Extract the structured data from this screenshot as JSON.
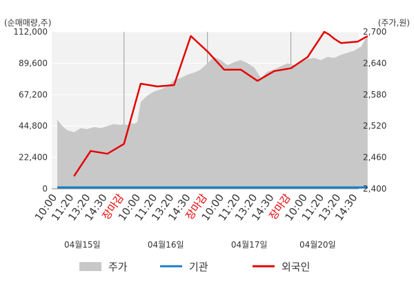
{
  "chart_data": {
    "type": "line",
    "left_axis_label": "(순매매량,주)",
    "right_axis_label": "(주가,원)",
    "left_ticks": [
      "112,000",
      "89,600",
      "67,200",
      "44,800",
      "22,400",
      "0"
    ],
    "left_range": [
      0,
      112000
    ],
    "right_ticks": [
      "2,700",
      "2,640",
      "2,580",
      "2,520",
      "2,460",
      "2,400"
    ],
    "right_range": [
      2400,
      2700
    ],
    "x_ticks": [
      {
        "label": "10:00",
        "color": "#333333"
      },
      {
        "label": "11:20",
        "color": "#333333"
      },
      {
        "label": "13:20",
        "color": "#333333"
      },
      {
        "label": "14:30",
        "color": "#333333"
      },
      {
        "label": "장마감",
        "color": "#e60000"
      },
      {
        "label": "10:00",
        "color": "#333333"
      },
      {
        "label": "11:20",
        "color": "#333333"
      },
      {
        "label": "13:20",
        "color": "#333333"
      },
      {
        "label": "14:30",
        "color": "#333333"
      },
      {
        "label": "장마감",
        "color": "#e60000"
      },
      {
        "label": "10:00",
        "color": "#333333"
      },
      {
        "label": "11:20",
        "color": "#333333"
      },
      {
        "label": "13:20",
        "color": "#333333"
      },
      {
        "label": "14:30",
        "color": "#333333"
      },
      {
        "label": "장마감",
        "color": "#e60000"
      },
      {
        "label": "10:00",
        "color": "#333333"
      },
      {
        "label": "11:20",
        "color": "#333333"
      },
      {
        "label": "13:20",
        "color": "#333333"
      },
      {
        "label": "14:30",
        "color": "#333333"
      }
    ],
    "dates": [
      "04월15일",
      "04월16일",
      "04월17일",
      "04월20일"
    ],
    "series": [
      {
        "name": "주가",
        "axis": "right",
        "color": "#c8c8c8",
        "kind": "area",
        "x": [
          0,
          0.3,
          0.6,
          1,
          1.4,
          1.8,
          2.2,
          2.6,
          3,
          3.4,
          3.8,
          4,
          4.2,
          4.4,
          4.6,
          4.8,
          5,
          5.4,
          5.8,
          6.2,
          6.6,
          7,
          7.4,
          7.8,
          8.2,
          8.6,
          9,
          9.4,
          9.8,
          10.2,
          10.6,
          11,
          11.4,
          11.8,
          12.2,
          12.6,
          13,
          13.4,
          13.8,
          14.2,
          14.6,
          15,
          15.4,
          15.8,
          16.2,
          16.6,
          17,
          17.4,
          17.8,
          18.2,
          18.6
        ],
        "values": [
          2532,
          2520,
          2512,
          2508,
          2516,
          2514,
          2518,
          2516,
          2520,
          2524,
          2522,
          2524,
          2522,
          2526,
          2524,
          2528,
          2566,
          2578,
          2586,
          2590,
          2596,
          2608,
          2612,
          2618,
          2622,
          2628,
          2640,
          2652,
          2646,
          2636,
          2642,
          2646,
          2640,
          2632,
          2612,
          2624,
          2628,
          2634,
          2640,
          2636,
          2642,
          2648,
          2650,
          2646,
          2652,
          2650,
          2656,
          2660,
          2664,
          2672,
          2694
        ]
      },
      {
        "name": "기관",
        "axis": "left",
        "color": "#1a7ec8",
        "kind": "line",
        "x": [
          0,
          18.6
        ],
        "values": [
          1000,
          1000
        ]
      },
      {
        "name": "외국인",
        "axis": "left",
        "color": "#e60000",
        "kind": "line",
        "x": [
          1,
          2,
          3,
          4,
          5,
          6,
          7,
          8,
          9,
          10,
          11,
          12,
          13,
          14,
          15,
          16,
          16.3,
          16.6,
          17,
          18,
          18.6
        ],
        "values": [
          9000,
          27000,
          25000,
          32000,
          75000,
          73000,
          74000,
          109000,
          98000,
          85000,
          85000,
          77000,
          84000,
          86000,
          94000,
          112000,
          110000,
          107000,
          104000,
          105000,
          109000
        ]
      }
    ],
    "legend": [
      {
        "name": "주가",
        "color": "#c8c8c8",
        "kind": "area"
      },
      {
        "name": "기관",
        "color": "#1a7ec8",
        "kind": "line"
      },
      {
        "name": "외국인",
        "color": "#e60000",
        "kind": "line"
      }
    ],
    "grid": true,
    "legend_position": "bottom"
  }
}
